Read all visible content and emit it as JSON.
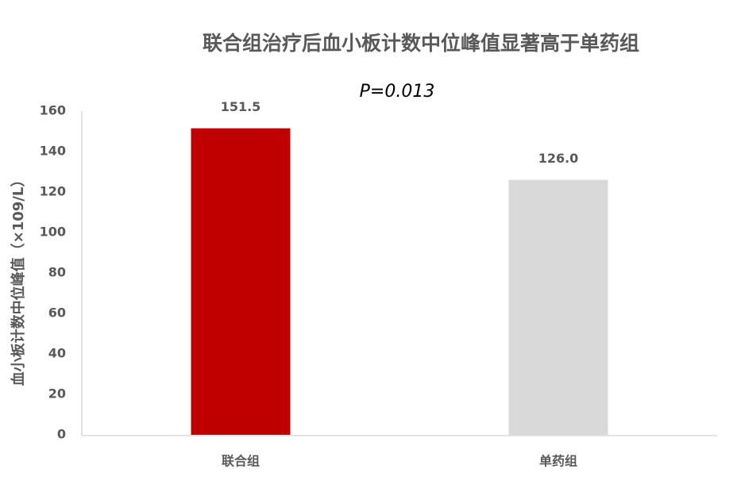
{
  "chart_data": {
    "type": "bar",
    "title": "联合组治疗后血小板计数中位峰值显著高于单药组",
    "annotation": "P=0.013",
    "y_label": "血小板计数中位峰值（×109/L）",
    "categories": [
      "联合组",
      "单药组"
    ],
    "values": [
      151.5,
      126
    ],
    "value_labels": [
      "151.5",
      "126.0"
    ],
    "colors": [
      "#c00000",
      "#d9d9d9"
    ],
    "ylim": [
      0,
      160
    ],
    "yticks": [
      0,
      20,
      40,
      60,
      80,
      100,
      120,
      140,
      160
    ],
    "grid": false
  }
}
